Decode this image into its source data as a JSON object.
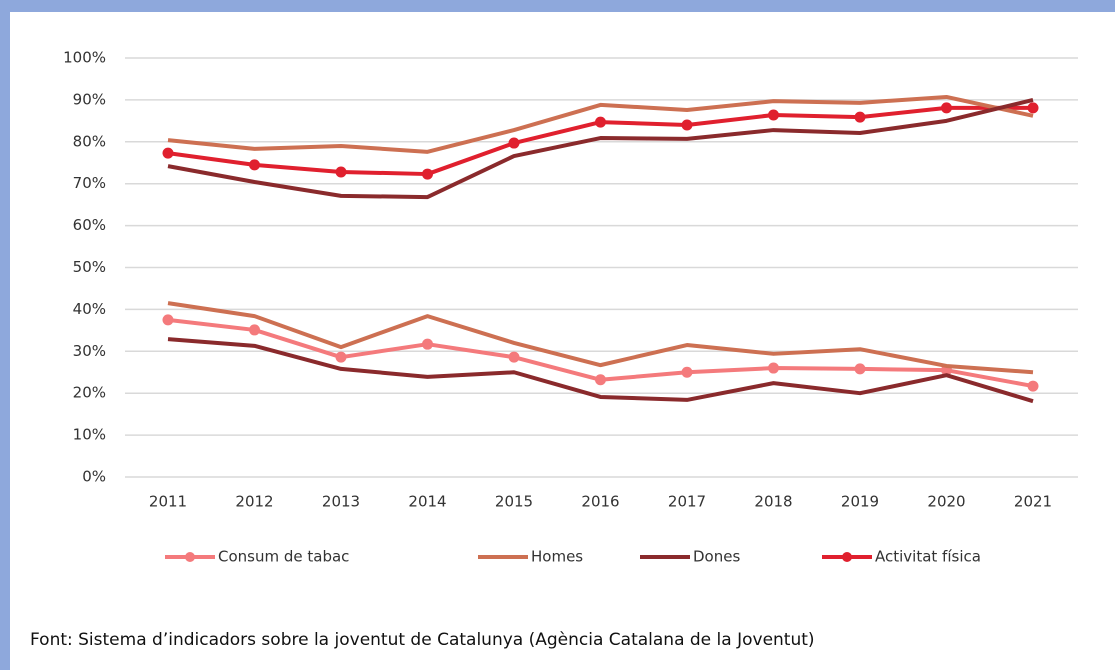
{
  "chart_data": {
    "type": "line",
    "categories": [
      "2011",
      "2012",
      "2013",
      "2014",
      "2015",
      "2016",
      "2017",
      "2018",
      "2019",
      "2020",
      "2021"
    ],
    "ylim": [
      0,
      100
    ],
    "yticks": [
      {
        "value": 0,
        "label": "0%"
      },
      {
        "value": 10,
        "label": "10%"
      },
      {
        "value": 20,
        "label": "20%"
      },
      {
        "value": 30,
        "label": "30%"
      },
      {
        "value": 40,
        "label": "40%"
      },
      {
        "value": 50,
        "label": "50%"
      },
      {
        "value": 60,
        "label": "60%"
      },
      {
        "value": 70,
        "label": "70%"
      },
      {
        "value": 80,
        "label": "80%"
      },
      {
        "value": 90,
        "label": "90%"
      },
      {
        "value": 100,
        "label": "100%"
      }
    ],
    "grid": true,
    "legend": "bottom",
    "series": [
      {
        "name": "Consum de tabac",
        "color": "#f47a7c",
        "markers": true,
        "values": [
          37.5,
          35.1,
          28.6,
          31.7,
          28.6,
          23.2,
          25,
          26,
          25.8,
          25.5,
          21.7
        ]
      },
      {
        "name": "Homes",
        "color": "#cd7052",
        "markers": false,
        "values": [
          41.5,
          38.4,
          31,
          38.4,
          32,
          26.7,
          31.5,
          29.4,
          30.5,
          26.5,
          25
        ]
      },
      {
        "name": "Dones",
        "color": "#8a2a2c",
        "markers": false,
        "values": [
          32.9,
          31.3,
          25.8,
          23.9,
          25,
          19.1,
          18.4,
          22.4,
          20,
          24.3,
          18.1
        ]
      },
      {
        "name": "Activitat física",
        "color": "#e0202e",
        "markers": true,
        "values": [
          77.3,
          74.5,
          72.8,
          72.3,
          79.7,
          84.7,
          84,
          86.4,
          85.9,
          88.1,
          88.1
        ]
      },
      {
        "name": "Homes",
        "color": "#cd7052",
        "markers": false,
        "values": [
          80.4,
          78.3,
          79,
          77.6,
          82.8,
          88.8,
          87.6,
          89.7,
          89.3,
          90.7,
          86.2
        ]
      },
      {
        "name": "Dones",
        "color": "#8a2a2c",
        "markers": false,
        "values": [
          74.2,
          70.4,
          67.1,
          66.8,
          76.6,
          80.9,
          80.7,
          82.8,
          82.1,
          85,
          90
        ]
      }
    ],
    "source": "Font: Sistema d’indicadors sobre la joventut de Catalunya (Agència Catalana de la Joventut)"
  }
}
